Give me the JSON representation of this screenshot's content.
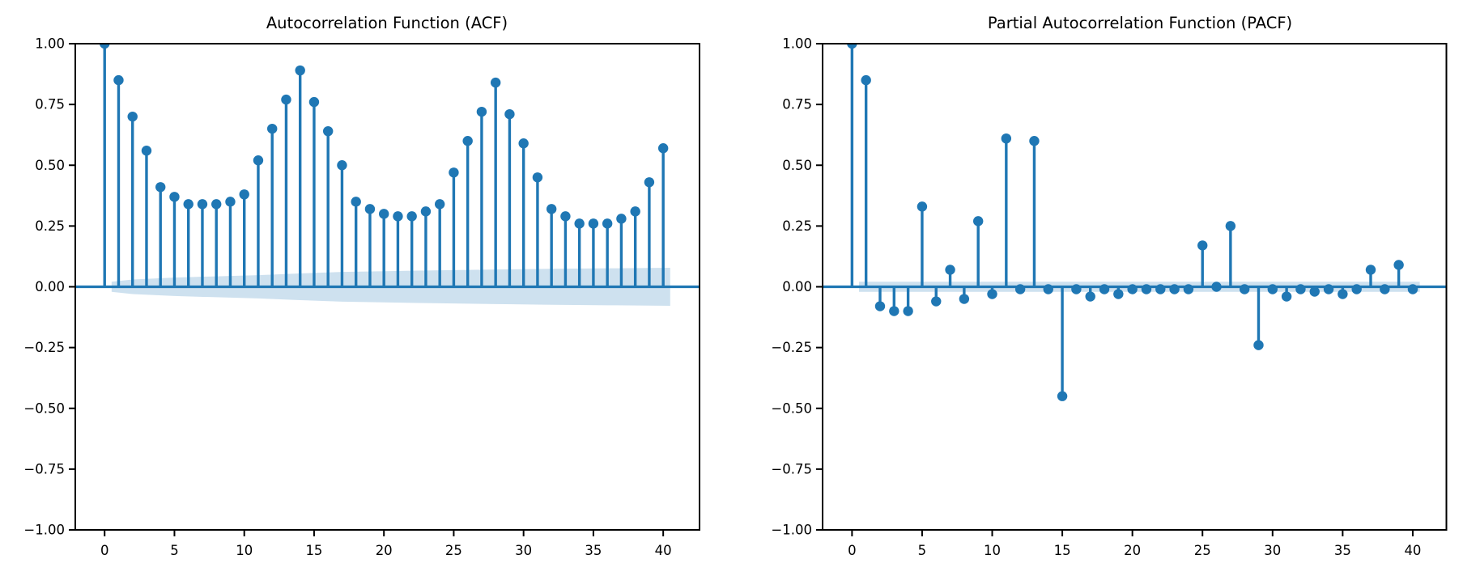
{
  "figure": {
    "background": "#ffffff",
    "titles": {
      "left": "Autocorrelation Function (ACF)",
      "right": "Partial Autocorrelation Function (PACF)"
    }
  },
  "style": {
    "stem_color": "#1f77b4",
    "marker_color": "#1f77b4",
    "band_color": "rgba(31,119,180,0.22)",
    "axis_color": "#000000",
    "background": "#ffffff"
  },
  "chart_data": [
    {
      "type": "stem",
      "title": "Autocorrelation Function (ACF)",
      "xlabel": "",
      "ylabel": "",
      "x": [
        0,
        1,
        2,
        3,
        4,
        5,
        6,
        7,
        8,
        9,
        10,
        11,
        12,
        13,
        14,
        15,
        16,
        17,
        18,
        19,
        20,
        21,
        22,
        23,
        24,
        25,
        26,
        27,
        28,
        29,
        30,
        31,
        32,
        33,
        34,
        35,
        36,
        37,
        38,
        39,
        40
      ],
      "values": [
        1.0,
        0.85,
        0.7,
        0.56,
        0.41,
        0.37,
        0.34,
        0.34,
        0.34,
        0.35,
        0.38,
        0.52,
        0.65,
        0.77,
        0.89,
        0.76,
        0.64,
        0.5,
        0.35,
        0.32,
        0.3,
        0.29,
        0.29,
        0.31,
        0.34,
        0.47,
        0.6,
        0.72,
        0.84,
        0.71,
        0.59,
        0.45,
        0.32,
        0.29,
        0.26,
        0.26,
        0.26,
        0.28,
        0.31,
        0.43,
        0.57
      ],
      "confidence_band": {
        "x": [
          0.5,
          2,
          5,
          8,
          11,
          14,
          17,
          20,
          24,
          28,
          32,
          36,
          40.5
        ],
        "upper": [
          0.021,
          0.03,
          0.038,
          0.043,
          0.048,
          0.055,
          0.061,
          0.064,
          0.068,
          0.071,
          0.074,
          0.076,
          0.078
        ],
        "lower": [
          -0.021,
          -0.03,
          -0.038,
          -0.043,
          -0.048,
          -0.055,
          -0.061,
          -0.064,
          -0.068,
          -0.071,
          -0.074,
          -0.076,
          -0.078
        ]
      },
      "xlim": [
        -2.1,
        42.6
      ],
      "ylim": [
        -1.0,
        1.0
      ],
      "grid": false,
      "legend": null,
      "yticks": [
        {
          "v": 1.0,
          "label": "1.00"
        },
        {
          "v": 0.75,
          "label": "0.75"
        },
        {
          "v": 0.5,
          "label": "0.50"
        },
        {
          "v": 0.25,
          "label": "0.25"
        },
        {
          "v": 0.0,
          "label": "0.00"
        },
        {
          "v": -0.25,
          "label": "−0.25"
        },
        {
          "v": -0.5,
          "label": "−0.50"
        },
        {
          "v": -0.75,
          "label": "−0.75"
        },
        {
          "v": -1.0,
          "label": "−1.00"
        }
      ],
      "xticks": [
        {
          "v": 0,
          "label": "0"
        },
        {
          "v": 5,
          "label": "5"
        },
        {
          "v": 10,
          "label": "10"
        },
        {
          "v": 15,
          "label": "15"
        },
        {
          "v": 20,
          "label": "20"
        },
        {
          "v": 25,
          "label": "25"
        },
        {
          "v": 30,
          "label": "30"
        },
        {
          "v": 35,
          "label": "35"
        },
        {
          "v": 40,
          "label": "40"
        }
      ]
    },
    {
      "type": "stem",
      "title": "Partial Autocorrelation Function (PACF)",
      "xlabel": "",
      "ylabel": "",
      "x": [
        0,
        1,
        2,
        3,
        4,
        5,
        6,
        7,
        8,
        9,
        10,
        11,
        12,
        13,
        14,
        15,
        16,
        17,
        18,
        19,
        20,
        21,
        22,
        23,
        24,
        25,
        26,
        27,
        28,
        29,
        30,
        31,
        32,
        33,
        34,
        35,
        36,
        37,
        38,
        39,
        40
      ],
      "values": [
        1.0,
        0.85,
        -0.08,
        -0.1,
        -0.1,
        0.33,
        -0.06,
        0.07,
        -0.05,
        0.27,
        -0.03,
        0.61,
        -0.01,
        0.6,
        -0.01,
        -0.45,
        -0.01,
        -0.04,
        -0.01,
        -0.03,
        -0.01,
        -0.01,
        -0.01,
        -0.01,
        -0.01,
        0.17,
        0.0,
        0.25,
        -0.01,
        -0.24,
        -0.01,
        -0.04,
        -0.01,
        -0.02,
        -0.01,
        -0.03,
        -0.01,
        0.07,
        -0.01,
        0.09,
        -0.01
      ],
      "confidence_band": {
        "x": [
          0.5,
          40.5
        ],
        "upper": [
          0.021,
          0.021
        ],
        "lower": [
          -0.021,
          -0.021
        ]
      },
      "xlim": [
        -2.1,
        42.4
      ],
      "ylim": [
        -1.0,
        1.0
      ],
      "grid": false,
      "legend": null,
      "yticks": [
        {
          "v": 1.0,
          "label": "1.00"
        },
        {
          "v": 0.75,
          "label": "0.75"
        },
        {
          "v": 0.5,
          "label": "0.50"
        },
        {
          "v": 0.25,
          "label": "0.25"
        },
        {
          "v": 0.0,
          "label": "0.00"
        },
        {
          "v": -0.25,
          "label": "−0.25"
        },
        {
          "v": -0.5,
          "label": "−0.50"
        },
        {
          "v": -0.75,
          "label": "−0.75"
        },
        {
          "v": -1.0,
          "label": "−1.00"
        }
      ],
      "xticks": [
        {
          "v": 0,
          "label": "0"
        },
        {
          "v": 5,
          "label": "5"
        },
        {
          "v": 10,
          "label": "10"
        },
        {
          "v": 15,
          "label": "15"
        },
        {
          "v": 20,
          "label": "20"
        },
        {
          "v": 25,
          "label": "25"
        },
        {
          "v": 30,
          "label": "30"
        },
        {
          "v": 35,
          "label": "35"
        },
        {
          "v": 40,
          "label": "40"
        }
      ]
    }
  ]
}
